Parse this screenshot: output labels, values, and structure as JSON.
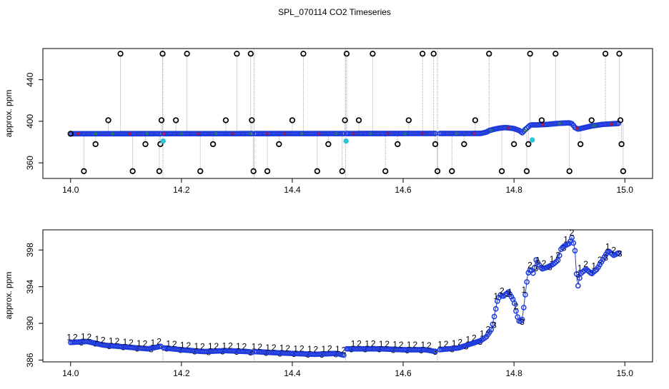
{
  "figure_title": "SPL_070114  CO2 Timeseries",
  "colors": {
    "frame": "#000000",
    "whisker": "#a9a9a9",
    "outlier": "#000000",
    "main_points": "#1f3bdc",
    "accent_red": "#e00000",
    "accent_green": "#1a9a1a",
    "flag_cyan": "#27c6d9"
  },
  "chart_data": [
    {
      "type": "scatter",
      "title": "",
      "xlabel": "",
      "ylabel": "approx. ppm",
      "xlim": [
        13.95,
        15.05
      ],
      "ylim": [
        345,
        470
      ],
      "xticks": [
        14.0,
        14.2,
        14.4,
        14.6,
        14.8,
        15.0
      ],
      "xtick_labels": [
        "14.0",
        "14.2",
        "14.4",
        "14.6",
        "14.8",
        "15.0"
      ],
      "yticks": [
        360,
        400,
        440
      ],
      "ytick_labels": [
        "360",
        "400",
        "440"
      ],
      "gaps": [
        [
          14.165,
          14.168
        ],
        [
          14.329,
          14.333
        ],
        [
          14.494,
          14.498
        ],
        [
          14.659,
          14.665
        ]
      ],
      "baseline": {
        "x": [
          14.0,
          14.74,
          14.75,
          14.755,
          14.765,
          14.775,
          14.785,
          14.8,
          14.81,
          14.815,
          14.82,
          14.83,
          14.84,
          14.86,
          14.88,
          14.9,
          14.905,
          14.91,
          14.915,
          14.92,
          14.94,
          14.96,
          14.99
        ],
        "y": [
          388,
          388.3,
          389.5,
          391,
          392.5,
          393.5,
          394,
          393,
          391,
          389,
          392,
          396.5,
          396.5,
          397,
          398,
          398.5,
          397.5,
          394,
          392.5,
          393,
          395.5,
          397,
          398
        ]
      },
      "outliers": [
        {
          "x": 14.0,
          "y": 388
        },
        {
          "x": 14.024,
          "y": 352
        },
        {
          "x": 14.045,
          "y": 378
        },
        {
          "x": 14.068,
          "y": 401
        },
        {
          "x": 14.09,
          "y": 465
        },
        {
          "x": 14.112,
          "y": 352
        },
        {
          "x": 14.135,
          "y": 378
        },
        {
          "x": 14.16,
          "y": 352
        },
        {
          "x": 14.162,
          "y": 378
        },
        {
          "x": 14.164,
          "y": 401
        },
        {
          "x": 14.166,
          "y": 465
        },
        {
          "x": 14.19,
          "y": 401
        },
        {
          "x": 14.21,
          "y": 465
        },
        {
          "x": 14.234,
          "y": 352
        },
        {
          "x": 14.257,
          "y": 378
        },
        {
          "x": 14.28,
          "y": 401
        },
        {
          "x": 14.3,
          "y": 465
        },
        {
          "x": 14.325,
          "y": 465
        },
        {
          "x": 14.327,
          "y": 401
        },
        {
          "x": 14.33,
          "y": 352
        },
        {
          "x": 14.355,
          "y": 352
        },
        {
          "x": 14.376,
          "y": 378
        },
        {
          "x": 14.4,
          "y": 401
        },
        {
          "x": 14.42,
          "y": 465
        },
        {
          "x": 14.445,
          "y": 352
        },
        {
          "x": 14.465,
          "y": 378
        },
        {
          "x": 14.49,
          "y": 352
        },
        {
          "x": 14.495,
          "y": 401
        },
        {
          "x": 14.498,
          "y": 465
        },
        {
          "x": 14.52,
          "y": 401
        },
        {
          "x": 14.545,
          "y": 465
        },
        {
          "x": 14.568,
          "y": 352
        },
        {
          "x": 14.59,
          "y": 378
        },
        {
          "x": 14.61,
          "y": 401
        },
        {
          "x": 14.635,
          "y": 465
        },
        {
          "x": 14.655,
          "y": 465
        },
        {
          "x": 14.658,
          "y": 378
        },
        {
          "x": 14.662,
          "y": 352
        },
        {
          "x": 14.688,
          "y": 352
        },
        {
          "x": 14.71,
          "y": 378
        },
        {
          "x": 14.73,
          "y": 401
        },
        {
          "x": 14.755,
          "y": 465
        },
        {
          "x": 14.778,
          "y": 352
        },
        {
          "x": 14.8,
          "y": 378
        },
        {
          "x": 14.823,
          "y": 352
        },
        {
          "x": 14.826,
          "y": 378
        },
        {
          "x": 14.829,
          "y": 465
        },
        {
          "x": 14.85,
          "y": 401
        },
        {
          "x": 14.875,
          "y": 465
        },
        {
          "x": 14.9,
          "y": 352
        },
        {
          "x": 14.92,
          "y": 378
        },
        {
          "x": 14.94,
          "y": 401
        },
        {
          "x": 14.965,
          "y": 465
        },
        {
          "x": 14.99,
          "y": 465
        },
        {
          "x": 14.992,
          "y": 401
        },
        {
          "x": 14.994,
          "y": 378
        },
        {
          "x": 14.997,
          "y": 352
        }
      ],
      "flagged": [
        {
          "x": 14.167,
          "y": 381
        },
        {
          "x": 14.497,
          "y": 381
        },
        {
          "x": 14.833,
          "y": 382
        }
      ]
    },
    {
      "type": "scatter",
      "title": "",
      "xlabel": "",
      "ylabel": "approx. ppm",
      "xlim": [
        13.95,
        15.05
      ],
      "ylim": [
        385.8,
        400.2
      ],
      "xticks": [
        14.0,
        14.2,
        14.4,
        14.6,
        14.8,
        15.0
      ],
      "xtick_labels": [
        "14.0",
        "14.2",
        "14.4",
        "14.6",
        "14.8",
        "15.0"
      ],
      "yticks": [
        386,
        390,
        394,
        398
      ],
      "ytick_labels": [
        "386",
        "390",
        "394",
        "398"
      ],
      "gaps": [
        [
          14.165,
          14.168
        ],
        [
          14.329,
          14.333
        ],
        [
          14.494,
          14.498
        ],
        [
          14.659,
          14.665
        ]
      ],
      "series_names": [
        "1",
        "2",
        "3"
      ],
      "series": {
        "x": [
          14.0,
          14.03,
          14.06,
          14.1,
          14.14,
          14.165,
          14.168,
          14.2,
          14.24,
          14.28,
          14.32,
          14.329,
          14.333,
          14.36,
          14.4,
          14.44,
          14.48,
          14.494,
          14.498,
          14.52,
          14.56,
          14.6,
          14.64,
          14.659,
          14.665,
          14.7,
          14.72,
          14.74,
          14.75,
          14.76,
          14.765,
          14.77,
          14.775,
          14.78,
          14.79,
          14.8,
          14.805,
          14.81,
          14.815,
          14.82,
          14.825,
          14.83,
          14.835,
          14.84,
          14.85,
          14.86,
          14.87,
          14.88,
          14.885,
          14.89,
          14.9,
          14.905,
          14.91,
          14.912,
          14.915,
          14.92,
          14.93,
          14.94,
          14.95,
          14.96,
          14.97,
          14.98,
          14.99
        ],
        "y": [
          388.0,
          388.1,
          387.7,
          387.5,
          387.3,
          387.6,
          387.4,
          387.2,
          387.0,
          387.1,
          387.0,
          386.9,
          387.0,
          386.9,
          386.8,
          386.7,
          386.8,
          386.6,
          387.3,
          387.3,
          387.3,
          387.2,
          387.2,
          387.0,
          387.2,
          387.4,
          387.8,
          388.2,
          388.6,
          389.5,
          391.0,
          392.5,
          393.2,
          393.0,
          393.5,
          392.5,
          391.0,
          390.2,
          390.5,
          393.0,
          395.5,
          396.0,
          395.5,
          397.0,
          396.0,
          396.2,
          396.5,
          397.0,
          398.2,
          398.5,
          398.8,
          399.5,
          398.0,
          396.0,
          394.0,
          395.5,
          396.0,
          395.5,
          396.0,
          397.0,
          398.0,
          397.5,
          397.8
        ]
      }
    }
  ]
}
